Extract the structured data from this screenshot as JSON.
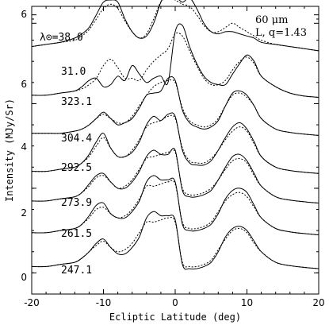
{
  "chart_data": {
    "type": "line",
    "xlabel": "Ecliptic Latitude (deg)",
    "ylabel": "Intensity (MJy/Sr)",
    "xlim": [
      -20,
      20
    ],
    "ylim": [
      -0.5,
      6.3
    ],
    "x_ticks": [
      "-20",
      "-10",
      "0",
      "10",
      "20"
    ],
    "y_ticks": [
      "0",
      "2",
      "4",
      "6",
      "6"
    ],
    "annotation_wavelength": "60 μm",
    "annotation_model": "L, q=1.43",
    "grid": false,
    "x": [
      -20,
      -18,
      -16,
      -14,
      -13,
      -12,
      -11,
      -10,
      -9,
      -8,
      -7,
      -6,
      -5,
      -4,
      -3,
      -2,
      -1,
      0,
      1,
      2,
      3,
      4,
      5,
      6,
      7,
      8,
      9,
      10,
      11,
      12,
      14,
      16,
      18,
      20
    ],
    "series": [
      {
        "name": "λ⊙=38.0",
        "offset": 6.6,
        "observed": [
          0.15,
          0.2,
          0.3,
          0.5,
          0.65,
          0.85,
          1.1,
          1.3,
          1.1,
          0.8,
          0.5,
          0.35,
          0.3,
          0.4,
          0.6,
          1.0,
          1.1,
          1.05,
          1.2,
          1.55,
          1.25,
          0.8,
          0.6,
          0.5,
          0.75,
          0.85,
          0.65,
          0.55,
          0.45,
          0.35,
          0.25,
          0.15,
          0.1,
          0.05
        ],
        "model": [
          0.15,
          0.2,
          0.3,
          0.45,
          0.6,
          0.8,
          1.0,
          1.2,
          1.1,
          0.85,
          0.55,
          0.4,
          0.3,
          0.35,
          0.55,
          0.9,
          1.0,
          1.0,
          1.1,
          1.3,
          1.1,
          0.8,
          0.6,
          0.55,
          0.65,
          0.8,
          0.65,
          0.55,
          0.45,
          0.35,
          0.25,
          0.15,
          0.1,
          0.05
        ]
      },
      {
        "name": "31.0",
        "offset": 5.2,
        "observed": [
          0.15,
          0.2,
          0.25,
          0.35,
          0.45,
          0.6,
          0.9,
          1.2,
          1.25,
          1.2,
          0.8,
          0.5,
          0.35,
          0.4,
          0.7,
          1.2,
          1.5,
          1.35,
          1.2,
          1.3,
          1.05,
          0.7,
          0.5,
          0.45,
          0.5,
          0.5,
          0.45,
          0.4,
          0.35,
          0.25,
          0.2,
          0.15,
          0.1,
          0.05
        ],
        "model": [
          0.15,
          0.2,
          0.25,
          0.3,
          0.4,
          0.55,
          0.8,
          1.05,
          1.15,
          1.05,
          0.75,
          0.5,
          0.35,
          0.45,
          0.8,
          1.2,
          1.3,
          1.25,
          1.15,
          1.1,
          0.9,
          0.65,
          0.5,
          0.5,
          0.6,
          0.7,
          0.6,
          0.5,
          0.4,
          0.3,
          0.2,
          0.15,
          0.1,
          0.05
        ]
      },
      {
        "name": "323.1",
        "offset": 4.1,
        "observed": [
          0.1,
          0.1,
          0.15,
          0.2,
          0.3,
          0.45,
          0.5,
          0.3,
          0.35,
          0.55,
          0.45,
          0.8,
          0.6,
          0.4,
          0.5,
          0.55,
          0.4,
          1.6,
          1.75,
          1.25,
          0.85,
          0.55,
          0.4,
          0.35,
          0.35,
          0.6,
          0.85,
          1.05,
          0.9,
          0.55,
          0.3,
          0.15,
          0.08,
          0.05
        ],
        "model": [
          0.1,
          0.1,
          0.15,
          0.2,
          0.25,
          0.35,
          0.5,
          0.8,
          0.95,
          0.75,
          0.5,
          0.5,
          0.45,
          0.7,
          0.9,
          1.05,
          1.2,
          1.55,
          1.5,
          1.15,
          0.8,
          0.5,
          0.35,
          0.35,
          0.45,
          0.7,
          0.9,
          1.0,
          0.85,
          0.55,
          0.3,
          0.15,
          0.08,
          0.05
        ]
      },
      {
        "name": "304.4",
        "offset": 3.2,
        "observed": [
          0.1,
          0.1,
          0.1,
          0.15,
          0.2,
          0.3,
          0.45,
          0.6,
          0.45,
          0.3,
          0.35,
          0.45,
          0.7,
          1.0,
          1.05,
          1.1,
          1.4,
          1.35,
          0.65,
          0.35,
          0.25,
          0.2,
          0.25,
          0.4,
          0.75,
          1.05,
          1.1,
          1.0,
          0.75,
          0.45,
          0.2,
          0.12,
          0.08,
          0.05
        ],
        "model": [
          0.1,
          0.1,
          0.1,
          0.15,
          0.2,
          0.3,
          0.45,
          0.55,
          0.45,
          0.35,
          0.35,
          0.5,
          0.75,
          1.0,
          1.2,
          1.3,
          1.35,
          1.3,
          0.7,
          0.4,
          0.3,
          0.25,
          0.3,
          0.45,
          0.75,
          1.0,
          1.05,
          0.95,
          0.75,
          0.45,
          0.2,
          0.12,
          0.08,
          0.05
        ]
      },
      {
        "name": "292.5",
        "offset": 2.3,
        "observed": [
          0.1,
          0.1,
          0.15,
          0.2,
          0.3,
          0.5,
          0.8,
          1.0,
          0.65,
          0.45,
          0.45,
          0.55,
          0.8,
          1.2,
          1.4,
          1.3,
          1.45,
          1.4,
          0.6,
          0.3,
          0.25,
          0.25,
          0.35,
          0.6,
          0.9,
          1.15,
          1.25,
          1.1,
          0.8,
          0.45,
          0.2,
          0.12,
          0.08,
          0.05
        ],
        "model": [
          0.1,
          0.1,
          0.15,
          0.2,
          0.3,
          0.45,
          0.7,
          0.9,
          0.65,
          0.45,
          0.45,
          0.6,
          0.85,
          1.15,
          1.25,
          1.3,
          1.4,
          1.35,
          0.65,
          0.35,
          0.3,
          0.3,
          0.4,
          0.6,
          0.85,
          1.05,
          1.15,
          1.05,
          0.75,
          0.45,
          0.2,
          0.12,
          0.08,
          0.05
        ]
      },
      {
        "name": "273.9",
        "offset": 1.6,
        "observed": [
          0.1,
          0.1,
          0.15,
          0.2,
          0.3,
          0.5,
          0.7,
          0.75,
          0.55,
          0.4,
          0.4,
          0.55,
          0.8,
          1.15,
          1.3,
          1.2,
          1.2,
          1.3,
          0.35,
          0.2,
          0.2,
          0.25,
          0.35,
          0.6,
          0.9,
          1.15,
          1.2,
          1.05,
          0.75,
          0.45,
          0.2,
          0.12,
          0.08,
          0.05
        ],
        "model": [
          0.1,
          0.1,
          0.15,
          0.2,
          0.3,
          0.45,
          0.65,
          0.7,
          0.55,
          0.4,
          0.45,
          0.6,
          0.85,
          1.1,
          1.15,
          1.2,
          1.25,
          1.25,
          0.4,
          0.25,
          0.25,
          0.3,
          0.4,
          0.6,
          0.85,
          1.05,
          1.1,
          1.0,
          0.7,
          0.45,
          0.2,
          0.12,
          0.08,
          0.05
        ]
      },
      {
        "name": "261.5",
        "offset": 0.85,
        "observed": [
          0.1,
          0.1,
          0.15,
          0.2,
          0.3,
          0.5,
          0.75,
          0.8,
          0.55,
          0.45,
          0.45,
          0.6,
          0.85,
          1.3,
          1.45,
          1.35,
          1.35,
          1.3,
          0.3,
          0.15,
          0.15,
          0.2,
          0.3,
          0.55,
          0.9,
          1.1,
          1.15,
          1.05,
          0.75,
          0.45,
          0.2,
          0.12,
          0.08,
          0.05
        ],
        "model": [
          0.1,
          0.1,
          0.15,
          0.2,
          0.3,
          0.45,
          0.65,
          0.7,
          0.55,
          0.45,
          0.5,
          0.65,
          0.9,
          1.2,
          1.2,
          1.25,
          1.3,
          1.25,
          0.35,
          0.2,
          0.2,
          0.25,
          0.35,
          0.6,
          0.85,
          1.0,
          1.05,
          0.95,
          0.7,
          0.45,
          0.2,
          0.12,
          0.08,
          0.05
        ]
      },
      {
        "name": "247.1",
        "offset": 0.05,
        "observed": [
          0.1,
          0.1,
          0.15,
          0.2,
          0.3,
          0.45,
          0.65,
          0.75,
          0.55,
          0.4,
          0.4,
          0.55,
          0.8,
          1.25,
          1.4,
          1.3,
          1.3,
          1.2,
          0.15,
          0.05,
          0.05,
          0.1,
          0.2,
          0.45,
          0.8,
          1.0,
          1.05,
          0.95,
          0.7,
          0.45,
          0.2,
          0.12,
          0.08,
          0.05
        ],
        "model": [
          0.1,
          0.1,
          0.15,
          0.2,
          0.3,
          0.45,
          0.6,
          0.7,
          0.55,
          0.45,
          0.5,
          0.65,
          0.9,
          1.15,
          1.15,
          1.2,
          1.25,
          1.15,
          0.2,
          0.1,
          0.1,
          0.15,
          0.25,
          0.5,
          0.75,
          0.95,
          1.0,
          0.9,
          0.65,
          0.45,
          0.2,
          0.12,
          0.08,
          0.05
        ]
      }
    ]
  }
}
